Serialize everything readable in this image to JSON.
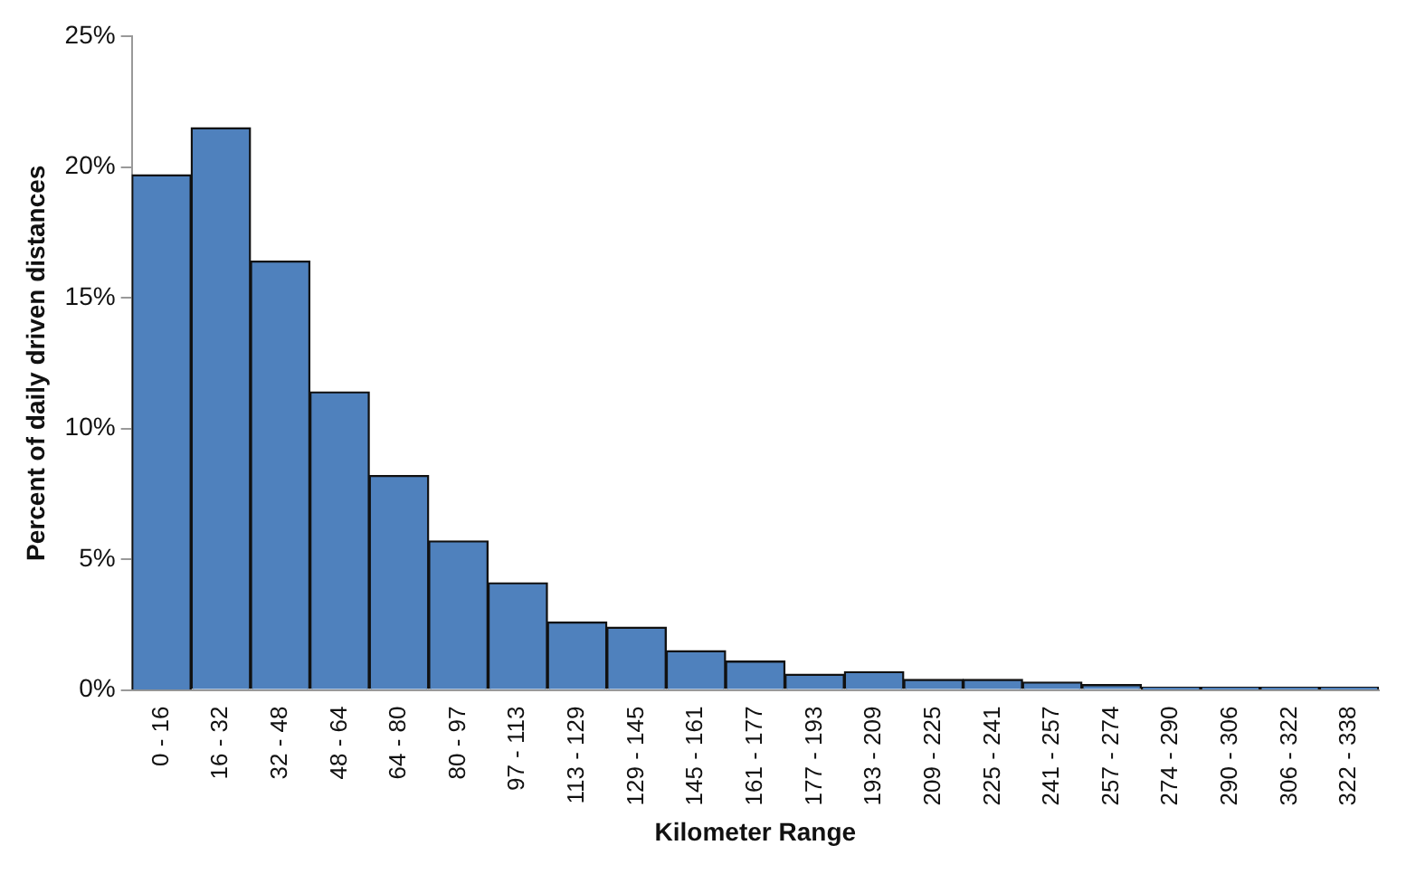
{
  "chart_data": {
    "type": "bar",
    "xlabel": "Kilometer Range",
    "ylabel": "Percent of daily driven distances",
    "categories": [
      "0 - 16",
      "16 - 32",
      "32 - 48",
      "48 - 64",
      "64 - 80",
      "80 - 97",
      "97 - 113",
      "113 - 129",
      "129 - 145",
      "145 - 161",
      "161 - 177",
      "177 - 193",
      "193 - 209",
      "209 - 225",
      "225 - 241",
      "241 - 257",
      "257 - 274",
      "274 - 290",
      "290 - 306",
      "306 - 322",
      "322 - 338"
    ],
    "values": [
      19.7,
      21.5,
      16.4,
      11.4,
      8.2,
      5.7,
      4.1,
      2.6,
      2.4,
      1.5,
      1.1,
      0.6,
      0.7,
      0.4,
      0.4,
      0.3,
      0.2,
      0.1,
      0.1,
      0.1,
      0.1
    ],
    "color": "#4f81bd",
    "ylim": [
      0,
      25
    ],
    "yticks": [
      {
        "value": 0,
        "label": "0%"
      },
      {
        "value": 5,
        "label": "5%"
      },
      {
        "value": 10,
        "label": "10%"
      },
      {
        "value": 15,
        "label": "15%"
      },
      {
        "value": 20,
        "label": "20%"
      },
      {
        "value": 25,
        "label": "25%"
      }
    ],
    "grid": false,
    "legend": false
  }
}
